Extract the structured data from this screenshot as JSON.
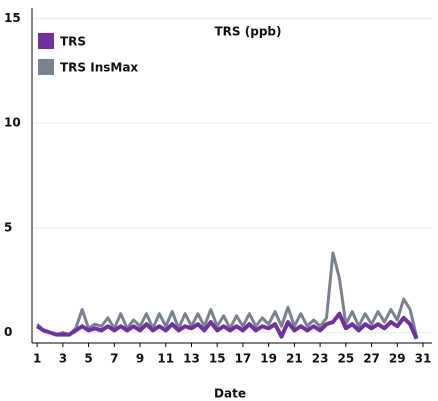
{
  "chart_data": {
    "type": "line",
    "title": "TRS (ppb)",
    "x_label": "Date",
    "x": [
      1,
      1.5,
      2,
      2.5,
      3,
      3.5,
      4,
      4.5,
      5,
      5.5,
      6,
      6.5,
      7,
      7.5,
      8,
      8.5,
      9,
      9.5,
      10,
      10.5,
      11,
      11.5,
      12,
      12.5,
      13,
      13.5,
      14,
      14.5,
      15,
      15.5,
      16,
      16.5,
      17,
      17.5,
      18,
      18.5,
      19,
      19.5,
      20,
      20.5,
      21,
      21.5,
      22,
      22.5,
      23,
      23.5,
      24,
      24.5,
      25,
      25.5,
      26,
      26.5,
      27,
      27.5,
      28,
      28.5,
      29,
      29.5,
      30,
      30.5
    ],
    "series": [
      {
        "name": "TRS",
        "color": "#7030a0",
        "values": [
          0.3,
          0.1,
          0,
          -0.1,
          -0.1,
          -0.1,
          0.1,
          0.3,
          0.1,
          0.2,
          0.1,
          0.3,
          0.1,
          0.3,
          0.1,
          0.3,
          0.1,
          0.4,
          0.1,
          0.3,
          0.1,
          0.4,
          0.1,
          0.3,
          0.2,
          0.4,
          0.1,
          0.5,
          0.1,
          0.3,
          0.1,
          0.3,
          0.1,
          0.4,
          0.1,
          0.3,
          0.2,
          0.4,
          -0.2,
          0.5,
          0.1,
          0.3,
          0.1,
          0.3,
          0.1,
          0.4,
          0.5,
          0.9,
          0.2,
          0.4,
          0.1,
          0.4,
          0.2,
          0.4,
          0.2,
          0.5,
          0.3,
          0.7,
          0.4,
          -0.3
        ]
      },
      {
        "name": "TRS InsMax",
        "color": "#7a8290",
        "values": [
          0.4,
          0.1,
          0,
          -0.1,
          0,
          -0.1,
          0.2,
          1.1,
          0.2,
          0.4,
          0.3,
          0.7,
          0.2,
          0.9,
          0.2,
          0.6,
          0.3,
          0.9,
          0.2,
          0.9,
          0.3,
          1.0,
          0.2,
          0.9,
          0.3,
          0.9,
          0.3,
          1.1,
          0.3,
          0.8,
          0.2,
          0.8,
          0.3,
          0.9,
          0.3,
          0.7,
          0.4,
          1.0,
          0.3,
          1.2,
          0.3,
          0.9,
          0.3,
          0.6,
          0.3,
          0.7,
          3.8,
          2.6,
          0.4,
          1.0,
          0.3,
          0.9,
          0.4,
          1.0,
          0.5,
          1.1,
          0.6,
          1.6,
          1.1,
          -0.2
        ]
      }
    ],
    "xlim": [
      0.6,
      31.7
    ],
    "xticks": [
      1,
      3,
      5,
      7,
      9,
      11,
      13,
      15,
      17,
      19,
      21,
      23,
      25,
      27,
      29,
      31
    ],
    "ylim": [
      -0.5,
      15.5
    ],
    "yticks": [
      0,
      5,
      10,
      15
    ],
    "grid": true,
    "legend": "upper left"
  }
}
